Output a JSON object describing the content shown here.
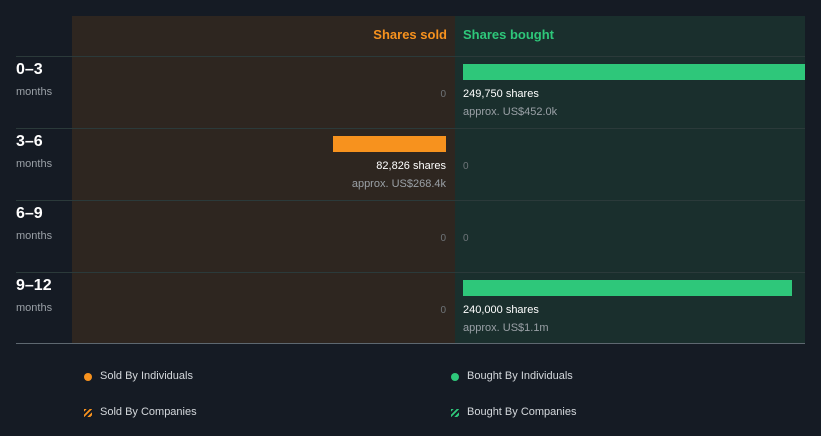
{
  "chart_data": {
    "type": "bar",
    "orientation": "horizontal-diverging",
    "headers": {
      "sold": "Shares sold",
      "bought": "Shares bought"
    },
    "max_shares": 249750,
    "rows": [
      {
        "period": "0–3",
        "unit": "months",
        "sold": {
          "shares": 0,
          "label": "0",
          "approx": ""
        },
        "bought": {
          "shares": 249750,
          "label": "249,750 shares",
          "approx": "approx. US$452.0k"
        }
      },
      {
        "period": "3–6",
        "unit": "months",
        "sold": {
          "shares": 82826,
          "label": "82,826 shares",
          "approx": "approx. US$268.4k"
        },
        "bought": {
          "shares": 0,
          "label": "0",
          "approx": ""
        }
      },
      {
        "period": "6–9",
        "unit": "months",
        "sold": {
          "shares": 0,
          "label": "0",
          "approx": ""
        },
        "bought": {
          "shares": 0,
          "label": "0",
          "approx": ""
        }
      },
      {
        "period": "9–12",
        "unit": "months",
        "sold": {
          "shares": 0,
          "label": "0",
          "approx": ""
        },
        "bought": {
          "shares": 240000,
          "label": "240,000 shares",
          "approx": "approx. US$1.1m"
        }
      }
    ],
    "legend": [
      {
        "label": "Sold By Individuals",
        "marker": "dot",
        "color": "#f7921e"
      },
      {
        "label": "Bought By Individuals",
        "marker": "dot",
        "color": "#2ec77a"
      },
      {
        "label": "Sold By Companies",
        "marker": "hatch",
        "color": "#f7921e"
      },
      {
        "label": "Bought By Companies",
        "marker": "hatch",
        "color": "#2ec77a"
      }
    ]
  },
  "colors": {
    "sold": "#f7921e",
    "bought": "#2ec77a"
  }
}
